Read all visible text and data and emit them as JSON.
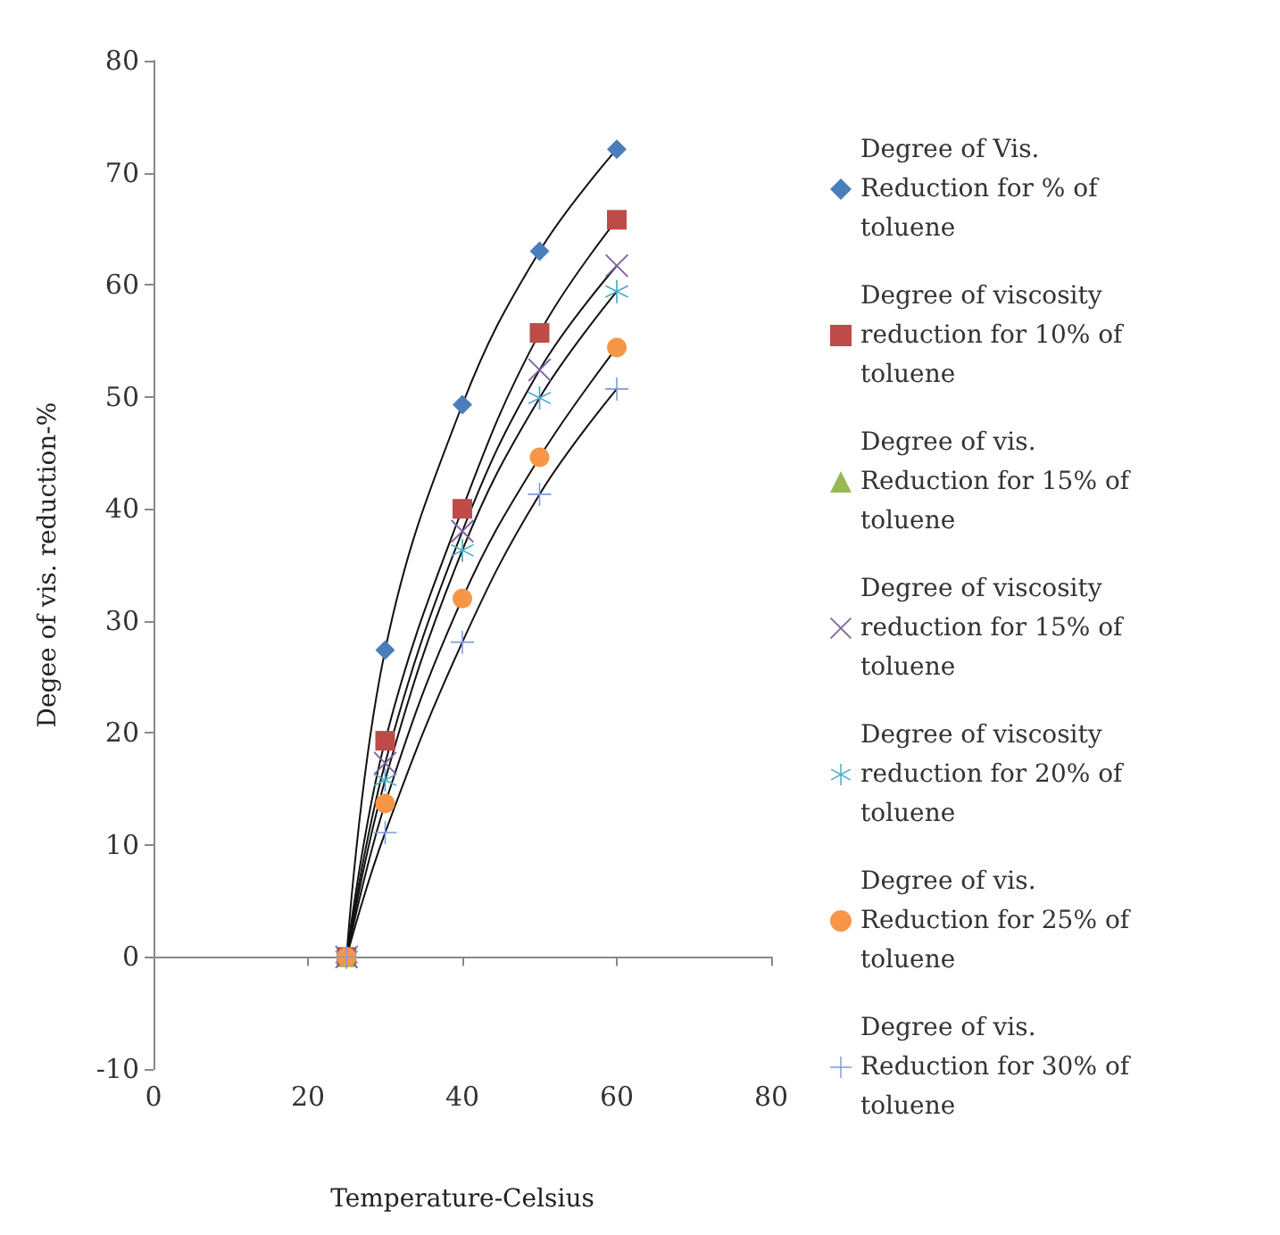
{
  "chart_data": {
    "type": "line",
    "xlabel": "Temperature-Celsius",
    "ylabel": "Degee of vis. reduction-%",
    "x": [
      25,
      30,
      40,
      50,
      60
    ],
    "xlim": [
      0,
      80
    ],
    "xticks": [
      0,
      20,
      40,
      60,
      80
    ],
    "ylim": [
      -10,
      80
    ],
    "yticks": [
      -10,
      0,
      10,
      20,
      30,
      40,
      50,
      60,
      70,
      80
    ],
    "legend": "right",
    "series": [
      {
        "name": "Degree of Vis. Reduction for % of toluene",
        "color": "#4a7ebb",
        "marker": "diamond",
        "values": [
          0,
          27.4,
          49.3,
          63,
          72.1
        ]
      },
      {
        "name": "Degree of viscosity reduction for 10% of toluene",
        "color": "#be4b48",
        "marker": "square",
        "values": [
          0,
          19.3,
          40,
          55.7,
          65.8
        ]
      },
      {
        "name": "Degree of vis. Reduction for 15% of toluene",
        "color": "#98b954",
        "marker": "triangle",
        "values": [
          0,
          null,
          null,
          null,
          null
        ]
      },
      {
        "name": "Degree of viscosity reduction for 15% of toluene",
        "color": "#7d60a0",
        "marker": "cross",
        "values": [
          0,
          17.3,
          38,
          52.4,
          61.7
        ]
      },
      {
        "name": "Degree of viscosity reduction for 20% of toluene",
        "color": "#46aac5",
        "marker": "star",
        "values": [
          0,
          15.8,
          36.3,
          49.9,
          59.4
        ]
      },
      {
        "name": "Degree of vis. Reduction for 25% of toluene",
        "color": "#f79646",
        "marker": "circle",
        "values": [
          0,
          13.7,
          32,
          44.6,
          54.4
        ]
      },
      {
        "name": "Degree of vis. Reduction for 30% of toluene",
        "color": "#7e9bd4",
        "marker": "plus",
        "values": [
          0,
          11.1,
          28.1,
          41.3,
          50.7
        ]
      }
    ]
  }
}
